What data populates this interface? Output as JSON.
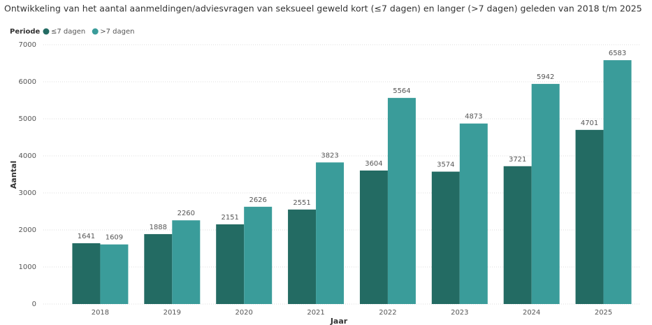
{
  "chart_data": {
    "type": "bar",
    "title": "Ontwikkeling van het aantal aanmeldingen/adviesvragen van seksueel geweld kort (≤7 dagen) en langer (>7 dagen) geleden van 2018 t/m 2025",
    "legend_title": "Periode",
    "x_label": "Jaar",
    "y_label": "Aantal",
    "categories": [
      "2018",
      "2019",
      "2020",
      "2021",
      "2022",
      "2023",
      "2024",
      "2025"
    ],
    "series": [
      {
        "name": "≤7 dagen",
        "color": "#236b63",
        "values": [
          1641,
          1888,
          2151,
          2551,
          3604,
          3574,
          3721,
          4701
        ]
      },
      {
        "name": ">7 dagen",
        "color": "#3a9c9a",
        "values": [
          1609,
          2260,
          2626,
          3823,
          5564,
          4873,
          5942,
          6583
        ]
      }
    ],
    "ylim": [
      0,
      7000
    ],
    "yticks": [
      0,
      1000,
      2000,
      3000,
      4000,
      5000,
      6000,
      7000
    ],
    "grid": true
  }
}
